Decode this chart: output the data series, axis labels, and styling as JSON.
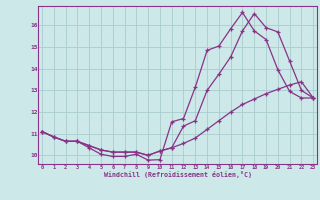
{
  "xlabel": "Windchill (Refroidissement éolien,°C)",
  "background_color": "#cce8e8",
  "grid_color": "#aacccc",
  "line_color": "#883388",
  "x_ticks": [
    0,
    1,
    2,
    3,
    4,
    5,
    6,
    7,
    8,
    9,
    10,
    11,
    12,
    13,
    14,
    15,
    16,
    17,
    18,
    19,
    20,
    21,
    22,
    23
  ],
  "ylim": [
    9.6,
    16.9
  ],
  "xlim": [
    -0.3,
    23.3
  ],
  "series1_x": [
    0,
    1,
    2,
    3,
    4,
    5,
    6,
    7,
    8,
    9,
    10,
    11,
    12,
    13,
    14,
    15,
    16,
    17,
    18,
    19,
    20,
    21,
    22,
    23
  ],
  "series1_y": [
    11.1,
    10.85,
    10.65,
    10.65,
    10.35,
    10.05,
    9.95,
    9.95,
    10.05,
    9.78,
    9.8,
    11.55,
    11.7,
    13.15,
    14.85,
    15.05,
    15.85,
    16.6,
    15.75,
    15.35,
    13.95,
    12.95,
    12.65,
    12.65
  ],
  "series2_x": [
    0,
    1,
    2,
    3,
    4,
    5,
    6,
    7,
    8,
    9,
    10,
    11,
    12,
    13,
    14,
    15,
    16,
    17,
    18,
    19,
    20,
    21,
    22,
    23
  ],
  "series2_y": [
    11.1,
    10.85,
    10.65,
    10.65,
    10.45,
    10.25,
    10.15,
    10.15,
    10.15,
    10.0,
    10.2,
    10.35,
    11.35,
    11.6,
    13.0,
    13.75,
    14.55,
    15.75,
    16.55,
    15.9,
    15.7,
    14.35,
    13.0,
    12.65
  ],
  "series3_x": [
    0,
    1,
    2,
    3,
    4,
    5,
    6,
    7,
    8,
    9,
    10,
    11,
    12,
    13,
    14,
    15,
    16,
    17,
    18,
    19,
    20,
    21,
    22,
    23
  ],
  "series3_y": [
    11.1,
    10.85,
    10.65,
    10.65,
    10.45,
    10.25,
    10.15,
    10.15,
    10.15,
    10.0,
    10.2,
    10.35,
    10.55,
    10.8,
    11.2,
    11.6,
    12.0,
    12.35,
    12.6,
    12.85,
    13.05,
    13.25,
    13.4,
    12.65
  ]
}
